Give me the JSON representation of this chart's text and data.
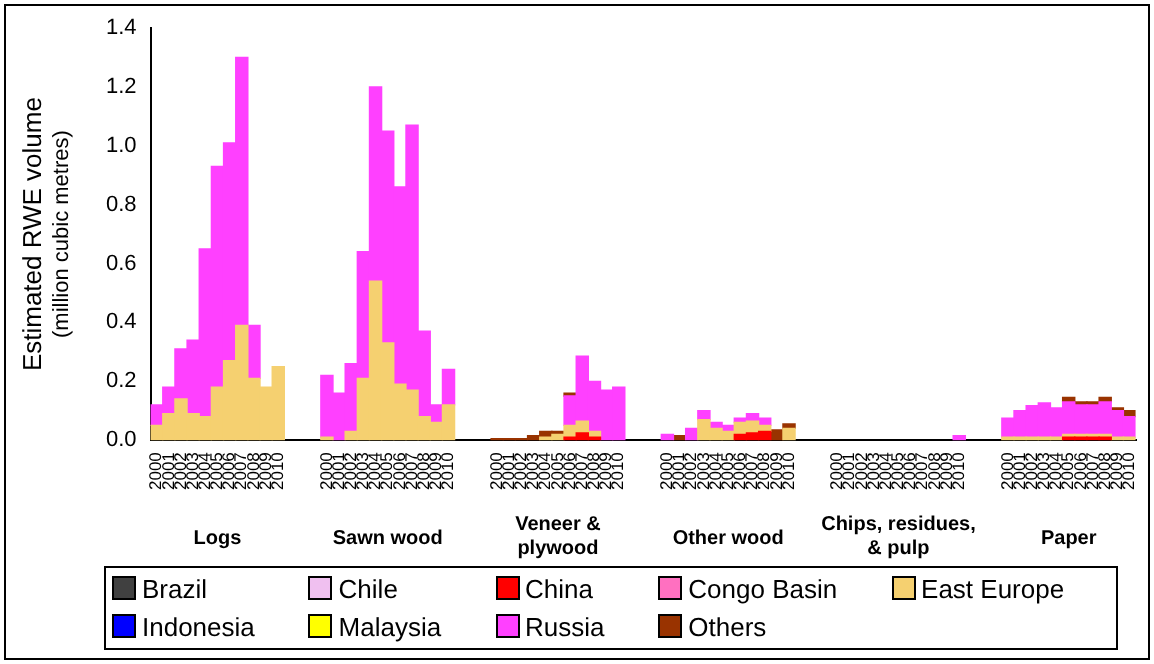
{
  "chart_data": {
    "type": "bar",
    "stacked": true,
    "ylabel": "Estimated RWE volume\n(million cubic metres)",
    "categories": [
      "2000",
      "2001",
      "2002",
      "2003",
      "2004",
      "2005",
      "2006",
      "2007",
      "2008",
      "2009",
      "2010",
      null,
      null,
      null,
      "2000",
      "2001",
      "2002",
      "2003",
      "2004",
      "2005",
      "2006",
      "2007",
      "2008",
      "2009",
      "2010",
      null,
      null,
      null,
      "2000",
      "2001",
      "2002",
      "2003",
      "2004",
      "2005",
      "2006",
      "2007",
      "2008",
      "2009",
      "2010",
      null,
      null,
      null,
      "2000",
      "2001",
      "2002",
      "2003",
      "2004",
      "2005",
      "2006",
      "2007",
      "2008",
      "2009",
      "2010",
      null,
      null,
      null,
      "2000",
      "2001",
      "2002",
      "2003",
      "2004",
      "2005",
      "2006",
      "2007",
      "2008",
      "2009",
      "2010",
      null,
      null,
      null,
      "2000",
      "2001",
      "2002",
      "2003",
      "2004",
      "2005",
      "2006",
      "2007",
      "2008",
      "2009",
      "2010"
    ],
    "annotations": [
      "Logs",
      "Sawn wood",
      "Veneer &\nplywood",
      "Other wood",
      "Chips, residues,\n& pulp",
      "Paper"
    ],
    "ylim": [
      0,
      1.4
    ],
    "yticks": [
      {
        "value": 0,
        "label": "0.0"
      },
      {
        "value": 0.2,
        "label": "0.2"
      },
      {
        "value": 0.4,
        "label": "0.4"
      },
      {
        "value": 0.6,
        "label": "0.6"
      },
      {
        "value": 0.8,
        "label": "0.8"
      },
      {
        "value": 1,
        "label": "1.0"
      },
      {
        "value": 1.2,
        "label": "1.2"
      },
      {
        "value": 1.4,
        "label": "1.4"
      }
    ],
    "grid": false,
    "legend": "bottom",
    "series": [
      {
        "name": "Brazil",
        "color": "#404040",
        "values": [
          null,
          null,
          null,
          null,
          null,
          null,
          null,
          null,
          null,
          null,
          null,
          null,
          null,
          null,
          null,
          null,
          null,
          null,
          null,
          null,
          null,
          null,
          null,
          null,
          null,
          null,
          null,
          null,
          null,
          null,
          null,
          null,
          null,
          null,
          null,
          null,
          null,
          null,
          null,
          null,
          null,
          null,
          null,
          null,
          null,
          null,
          null,
          null,
          null,
          null,
          null,
          null,
          null,
          null,
          null,
          null,
          null,
          null,
          null,
          null,
          null,
          null,
          null,
          null,
          null,
          null,
          null,
          null,
          null,
          null,
          null,
          null,
          null,
          null,
          null,
          null,
          null,
          null,
          null,
          null,
          null
        ]
      },
      {
        "name": "Chile",
        "color": "#f0c0f0",
        "values": [
          null,
          null,
          null,
          null,
          null,
          null,
          null,
          null,
          null,
          null,
          null,
          null,
          null,
          null,
          null,
          null,
          null,
          null,
          null,
          null,
          null,
          null,
          null,
          null,
          null,
          null,
          null,
          null,
          null,
          null,
          null,
          null,
          null,
          null,
          null,
          null,
          null,
          null,
          null,
          null,
          null,
          null,
          null,
          null,
          null,
          null,
          null,
          null,
          null,
          null,
          null,
          null,
          null,
          null,
          null,
          null,
          null,
          null,
          null,
          null,
          null,
          null,
          null,
          null,
          null,
          null,
          null,
          null,
          null,
          null,
          null,
          null,
          null,
          null,
          null,
          null,
          null,
          null,
          null,
          null,
          null
        ]
      },
      {
        "name": "China",
        "color": "#ff0000",
        "values": [
          null,
          null,
          null,
          null,
          null,
          null,
          null,
          null,
          null,
          null,
          null,
          null,
          null,
          null,
          null,
          null,
          null,
          null,
          null,
          null,
          null,
          null,
          null,
          null,
          null,
          null,
          null,
          null,
          null,
          null,
          null,
          null,
          null,
          null,
          0.01,
          0.025,
          0.01,
          null,
          null,
          null,
          null,
          null,
          null,
          null,
          null,
          null,
          null,
          null,
          0.02,
          0.025,
          0.03,
          null,
          null,
          null,
          null,
          null,
          null,
          null,
          null,
          null,
          null,
          null,
          null,
          null,
          null,
          null,
          null,
          null,
          null,
          null,
          null,
          null,
          null,
          null,
          null,
          0.01,
          0.01,
          0.01,
          0.01,
          null,
          null
        ]
      },
      {
        "name": "Congo Basin",
        "color": "#ff70c0",
        "values": [
          null,
          null,
          null,
          null,
          null,
          null,
          null,
          null,
          null,
          null,
          null,
          null,
          null,
          null,
          null,
          null,
          null,
          null,
          null,
          null,
          null,
          null,
          null,
          null,
          null,
          null,
          null,
          null,
          null,
          null,
          null,
          null,
          null,
          null,
          null,
          null,
          null,
          null,
          null,
          null,
          null,
          null,
          null,
          null,
          null,
          null,
          null,
          null,
          null,
          null,
          null,
          null,
          null,
          null,
          null,
          null,
          null,
          null,
          null,
          null,
          null,
          null,
          null,
          null,
          null,
          null,
          null,
          null,
          null,
          null,
          null,
          null,
          null,
          null,
          null,
          null,
          null,
          null,
          null,
          null,
          null
        ]
      },
      {
        "name": "East Europe",
        "color": "#f5d070",
        "values": [
          0.05,
          0.09,
          0.14,
          0.09,
          0.08,
          0.18,
          0.27,
          0.39,
          0.21,
          0.18,
          0.25,
          null,
          null,
          null,
          0.01,
          null,
          0.03,
          0.21,
          0.54,
          0.33,
          0.19,
          0.17,
          0.08,
          0.06,
          0.12,
          null,
          null,
          null,
          null,
          null,
          null,
          null,
          0.01,
          0.02,
          0.04,
          0.04,
          0.02,
          null,
          null,
          null,
          null,
          null,
          null,
          null,
          null,
          0.07,
          0.04,
          0.03,
          0.04,
          0.04,
          0.02,
          null,
          0.04,
          null,
          null,
          null,
          null,
          null,
          null,
          null,
          null,
          null,
          null,
          null,
          null,
          null,
          null,
          null,
          null,
          null,
          0.01,
          0.01,
          0.01,
          0.01,
          0.01,
          0.01,
          0.01,
          0.01,
          0.01,
          0.01,
          0.01
        ]
      },
      {
        "name": "Indonesia",
        "color": "#0000ff",
        "values": [
          null,
          null,
          null,
          null,
          null,
          null,
          null,
          null,
          null,
          null,
          null,
          null,
          null,
          null,
          null,
          null,
          null,
          null,
          null,
          null,
          null,
          null,
          null,
          null,
          null,
          null,
          null,
          null,
          null,
          null,
          null,
          null,
          null,
          null,
          null,
          null,
          null,
          null,
          null,
          null,
          null,
          null,
          null,
          null,
          null,
          null,
          null,
          null,
          null,
          null,
          null,
          null,
          null,
          null,
          null,
          null,
          null,
          null,
          null,
          null,
          null,
          null,
          null,
          null,
          null,
          null,
          null,
          null,
          null,
          null,
          null,
          null,
          null,
          null,
          null,
          null,
          null,
          null,
          null,
          null,
          null
        ]
      },
      {
        "name": "Malaysia",
        "color": "#ffff00",
        "values": [
          null,
          null,
          null,
          null,
          null,
          null,
          null,
          null,
          null,
          null,
          null,
          null,
          null,
          null,
          null,
          null,
          null,
          null,
          null,
          null,
          null,
          null,
          null,
          null,
          null,
          null,
          null,
          null,
          null,
          null,
          null,
          null,
          null,
          null,
          null,
          null,
          null,
          null,
          null,
          null,
          null,
          null,
          null,
          null,
          null,
          null,
          null,
          null,
          null,
          null,
          null,
          null,
          null,
          null,
          null,
          null,
          null,
          null,
          null,
          null,
          null,
          null,
          null,
          null,
          null,
          null,
          null,
          null,
          null,
          null,
          null,
          null,
          null,
          null,
          null,
          null,
          null,
          null,
          null,
          null,
          null
        ]
      },
      {
        "name": "Russia",
        "color": "#ff40ff",
        "values": [
          0.07,
          0.09,
          0.17,
          0.25,
          0.57,
          0.75,
          0.74,
          0.91,
          0.18,
          null,
          null,
          null,
          null,
          null,
          0.21,
          0.16,
          0.23,
          0.43,
          0.66,
          0.72,
          0.67,
          0.9,
          0.29,
          0.06,
          0.12,
          null,
          null,
          null,
          null,
          null,
          null,
          null,
          null,
          null,
          0.1,
          0.22,
          0.17,
          0.17,
          0.18,
          null,
          null,
          null,
          0.02,
          null,
          0.04,
          0.03,
          0.02,
          0.02,
          0.015,
          0.025,
          0.025,
          null,
          null,
          null,
          null,
          null,
          null,
          null,
          null,
          null,
          null,
          null,
          null,
          null,
          null,
          null,
          0.015,
          null,
          null,
          null,
          0.065,
          0.09,
          0.107,
          0.117,
          0.1,
          0.11,
          0.1,
          0.1,
          0.11,
          0.09,
          0.07
        ]
      },
      {
        "name": "Others",
        "color": "#993300",
        "values": [
          null,
          null,
          null,
          null,
          null,
          null,
          null,
          null,
          null,
          null,
          null,
          null,
          null,
          null,
          null,
          null,
          null,
          null,
          null,
          null,
          null,
          null,
          null,
          null,
          null,
          null,
          null,
          null,
          0.005,
          0.005,
          0.005,
          0.015,
          0.02,
          0.01,
          0.01,
          null,
          null,
          null,
          null,
          null,
          null,
          null,
          null,
          0.015,
          null,
          null,
          null,
          null,
          null,
          null,
          null,
          0.035,
          0.015,
          null,
          null,
          null,
          null,
          null,
          null,
          null,
          null,
          null,
          null,
          null,
          null,
          null,
          null,
          null,
          null,
          null,
          null,
          null,
          null,
          null,
          null,
          0.015,
          0.01,
          0.01,
          0.015,
          0.01,
          0.02
        ]
      }
    ]
  }
}
